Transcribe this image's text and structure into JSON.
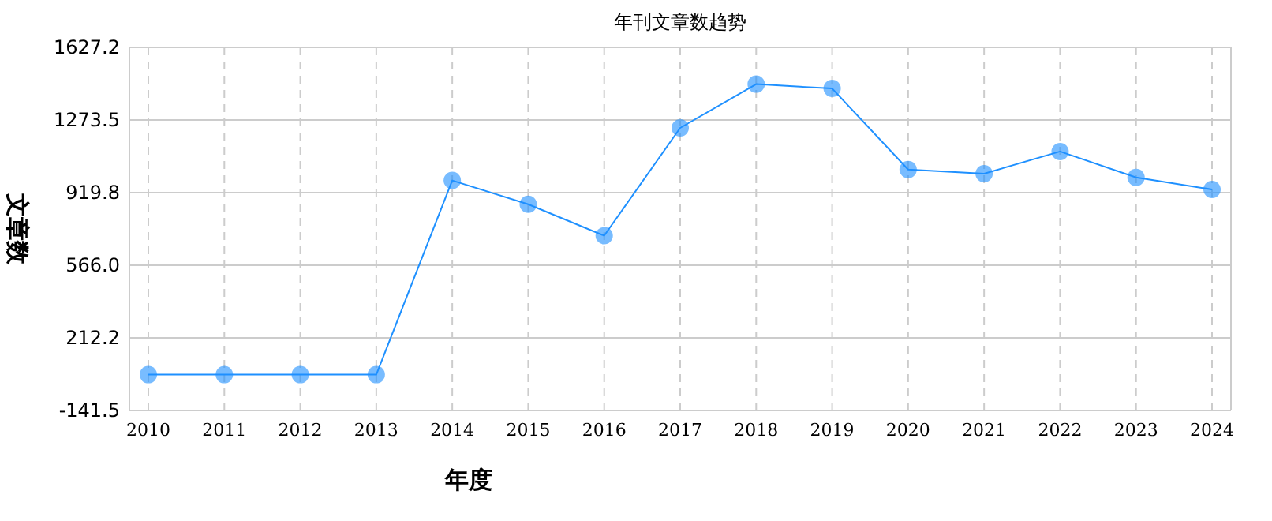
{
  "chart_data": {
    "type": "line",
    "title": "年刊文章数趋势",
    "xlabel": "年度",
    "ylabel": "文章数",
    "categories": [
      "2010",
      "2011",
      "2012",
      "2013",
      "2014",
      "2015",
      "2016",
      "2017",
      "2018",
      "2019",
      "2020",
      "2021",
      "2022",
      "2023",
      "2024"
    ],
    "series": [
      {
        "color": "#1e90ff",
        "values": [
          33,
          33,
          33,
          33,
          979,
          863,
          710,
          1235,
          1448,
          1427,
          1032,
          1012,
          1120,
          994,
          935
        ]
      }
    ],
    "ylim": [
      -141.5,
      1627.2
    ],
    "yticks": [
      {
        "value": -141.5,
        "label": "-141.5"
      },
      {
        "value": 212.2,
        "label": "212.2"
      },
      {
        "value": 566.0,
        "label": "566.0"
      },
      {
        "value": 919.8,
        "label": "919.8"
      },
      {
        "value": 1273.5,
        "label": "1273.5"
      },
      {
        "value": 1627.2,
        "label": "1627.2"
      }
    ],
    "grid": true,
    "marker": "circle",
    "line_style": "solid"
  }
}
